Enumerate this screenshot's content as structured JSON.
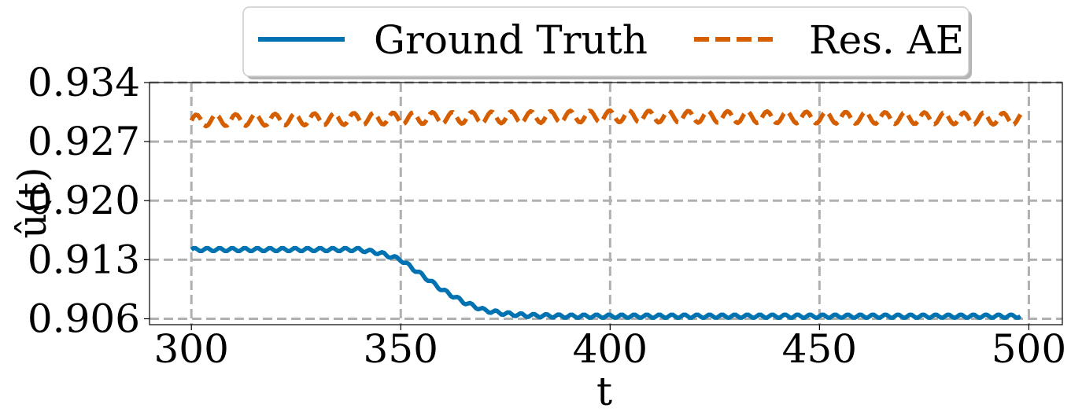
{
  "chart_data": {
    "type": "line",
    "title": "",
    "xlabel": "t",
    "ylabel": "û(t)",
    "xlim": [
      290,
      508
    ],
    "ylim": [
      0.9053,
      0.934
    ],
    "x_ticks": [
      300,
      350,
      400,
      450,
      500
    ],
    "y_ticks": [
      0.906,
      0.913,
      0.92,
      0.927,
      0.934
    ],
    "x_tick_labels": [
      "300",
      "350",
      "400",
      "450",
      "500"
    ],
    "y_tick_labels": [
      "0.906",
      "0.913",
      "0.920",
      "0.927",
      "0.934"
    ],
    "grid": true,
    "legend_position": "top, above plot",
    "series": [
      {
        "name": "Ground Truth",
        "color": "#0072B2",
        "style": "solid",
        "points": [
          [
            300,
            0.9142
          ],
          [
            310,
            0.9142
          ],
          [
            320,
            0.9142
          ],
          [
            330,
            0.9142
          ],
          [
            340,
            0.9142
          ],
          [
            345,
            0.9138
          ],
          [
            350,
            0.913
          ],
          [
            355,
            0.9112
          ],
          [
            360,
            0.9094
          ],
          [
            365,
            0.908
          ],
          [
            370,
            0.907
          ],
          [
            375,
            0.9066
          ],
          [
            380,
            0.9064
          ],
          [
            390,
            0.9063
          ],
          [
            400,
            0.9063
          ],
          [
            450,
            0.9063
          ],
          [
            498,
            0.9063
          ]
        ],
        "ripple_amplitude": 0.0002,
        "ripple_period": 3
      },
      {
        "name": "Res. AE",
        "color": "#D55E00",
        "style": "dashed",
        "points": [
          [
            300,
            0.9295
          ],
          [
            400,
            0.93
          ],
          [
            498,
            0.9297
          ]
        ],
        "ripple_amplitude": 0.0007,
        "ripple_period": 4.7
      }
    ]
  }
}
